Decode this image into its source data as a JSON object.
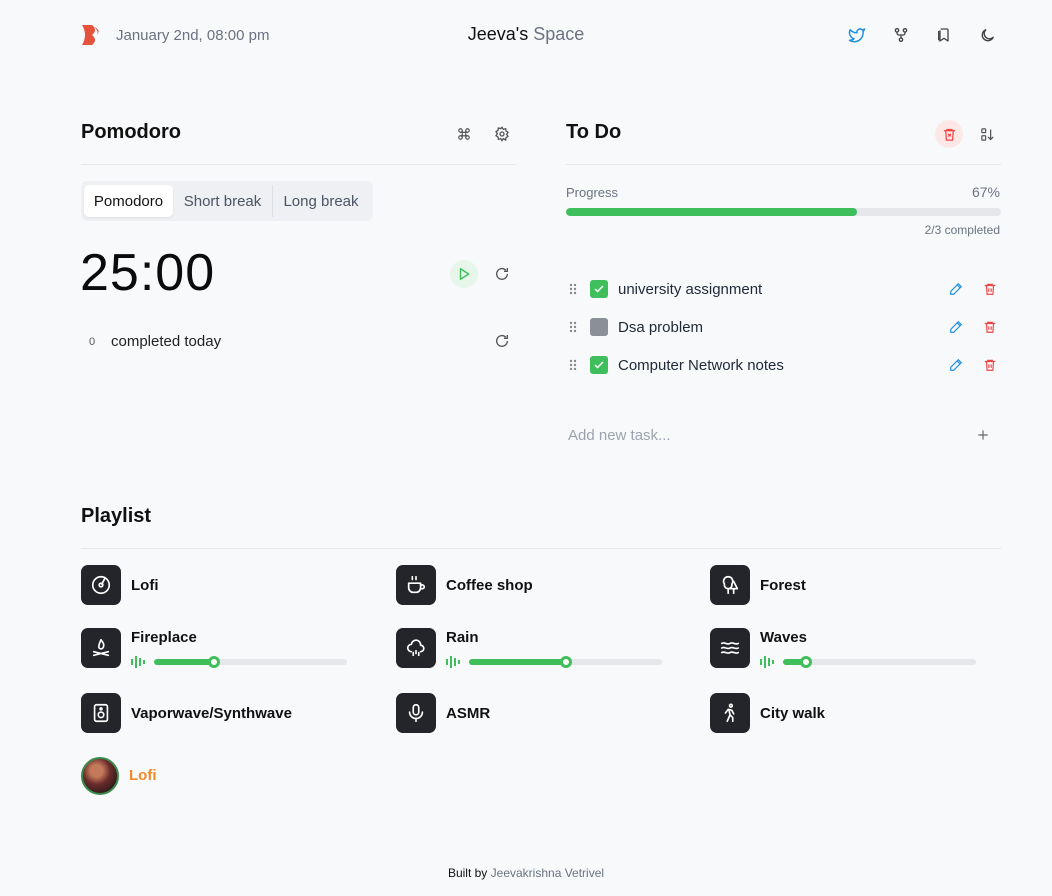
{
  "header": {
    "date": "January 2nd, 08:00 pm",
    "title_main": "Jeeva's",
    "title_muted": "Space",
    "icons": [
      "twitter-icon",
      "git-fork-icon",
      "bookmarks-icon",
      "moon-icon"
    ]
  },
  "pomodoro": {
    "title": "Pomodoro",
    "tabs": [
      "Pomodoro",
      "Short break",
      "Long break"
    ],
    "active_tab": "Pomodoro",
    "timer": "25:00",
    "completed_count": "0",
    "completed_label": "completed today"
  },
  "todo": {
    "title": "To Do",
    "progress_label": "Progress",
    "progress_pct": "67%",
    "progress_value": 0.67,
    "progress_count": "2/3 completed",
    "tasks": [
      {
        "text": "university assignment",
        "done": true
      },
      {
        "text": "Dsa problem",
        "done": false
      },
      {
        "text": "Computer Network notes",
        "done": true
      }
    ],
    "new_task_placeholder": "Add new task..."
  },
  "playlist": {
    "title": "Playlist",
    "items": [
      {
        "name": "Lofi",
        "icon": "vinyl-icon"
      },
      {
        "name": "Coffee shop",
        "icon": "coffee-icon"
      },
      {
        "name": "Forest",
        "icon": "trees-icon"
      },
      {
        "name": "Fireplace",
        "icon": "campfire-icon",
        "volume": 0.31
      },
      {
        "name": "Rain",
        "icon": "cloud-rain-icon",
        "volume": 0.5
      },
      {
        "name": "Waves",
        "icon": "waves-icon",
        "volume": 0.12
      },
      {
        "name": "Vaporwave/Synthwave",
        "icon": "speaker-icon"
      },
      {
        "name": "ASMR",
        "icon": "microphone-icon"
      },
      {
        "name": "City walk",
        "icon": "walking-icon"
      }
    ],
    "now_playing": "Lofi"
  },
  "footer": {
    "prefix": "Built by",
    "author": "Jeevakrishna Vetrivel"
  },
  "colors": {
    "accent_green": "#3fbe5c",
    "danger_red": "#ef4444",
    "link_blue": "#1d8fe0",
    "now_playing_orange": "#f08a24"
  }
}
